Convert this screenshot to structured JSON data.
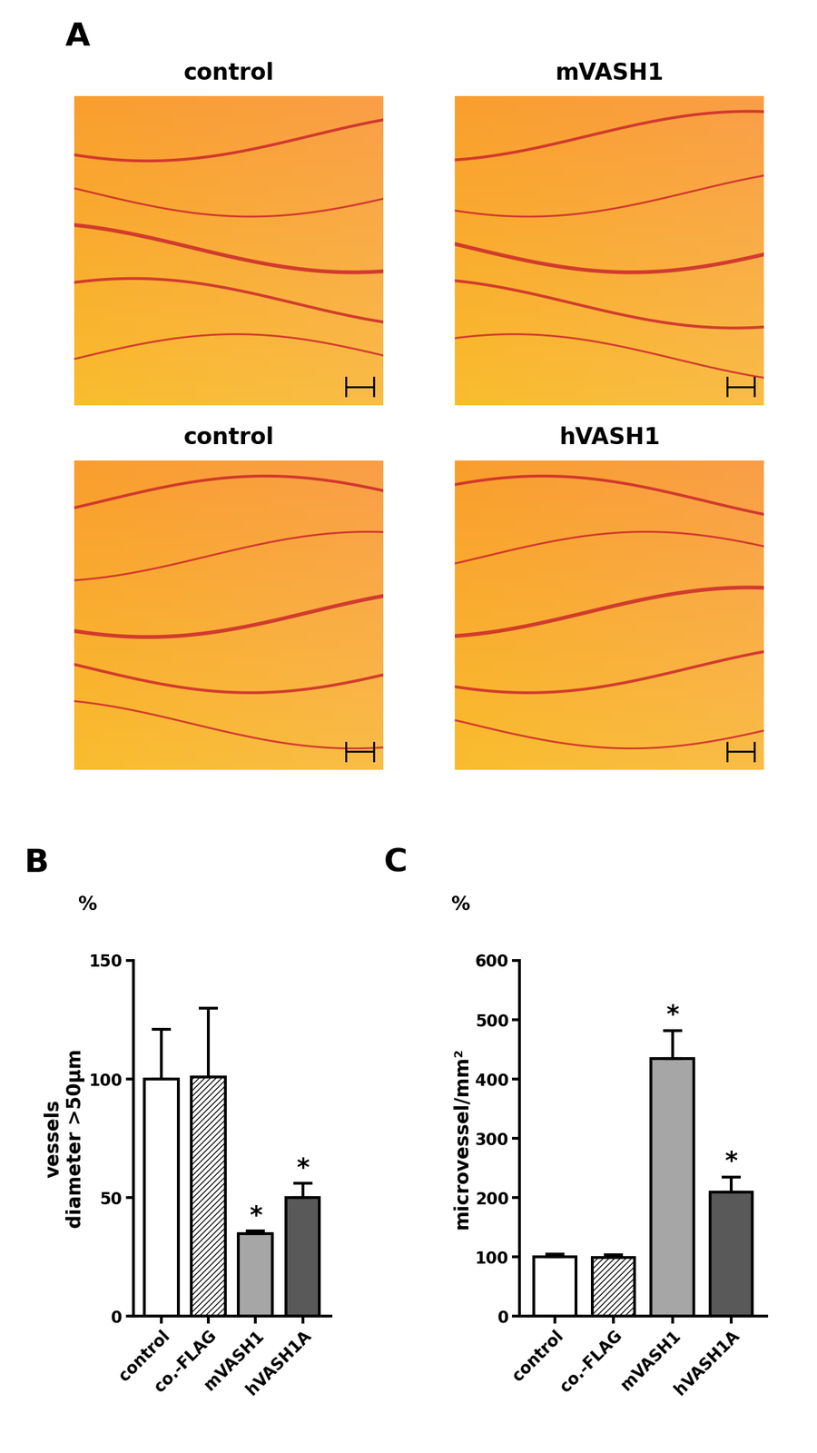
{
  "panel_a": {
    "panel_label": "A",
    "images": [
      "control",
      "mVASH1",
      "control",
      "hVASH1"
    ]
  },
  "chart_data": [
    {
      "type": "bar",
      "panel_label": "B",
      "y_unit": "%",
      "y_label": "vessels\ndiameter >50µm",
      "categories": [
        "control",
        "co.-FLAG",
        "mVASH1",
        "hVASH1A"
      ],
      "values": [
        100,
        101,
        35,
        50
      ],
      "errors": [
        21,
        29,
        1,
        6
      ],
      "colors": [
        "#ffffff",
        "#ffffff",
        "#a6a6a6",
        "#595959"
      ],
      "annotations": [
        null,
        null,
        "*",
        "*"
      ],
      "ylim": [
        0,
        150
      ],
      "yticks": [
        0,
        50,
        100,
        150
      ],
      "grid": false
    },
    {
      "type": "bar",
      "panel_label": "C",
      "y_unit": "%",
      "y_label": "microvessel/mm²",
      "categories": [
        "control",
        "co.-FLAG",
        "mVASH1",
        "hVASH1A"
      ],
      "values": [
        100,
        99,
        435,
        210
      ],
      "errors": [
        5,
        5,
        47,
        25
      ],
      "colors": [
        "#ffffff",
        "#ffffff",
        "#a6a6a6",
        "#595959"
      ],
      "annotations": [
        null,
        null,
        "*",
        "*"
      ],
      "ylim": [
        0,
        600
      ],
      "yticks": [
        0,
        100,
        200,
        300,
        400,
        500,
        600
      ],
      "grid": false
    }
  ]
}
